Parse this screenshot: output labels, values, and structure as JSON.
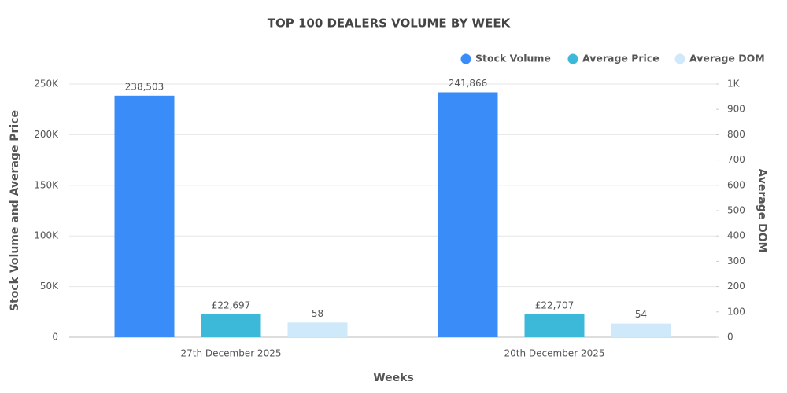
{
  "chart_data": {
    "type": "bar",
    "title": "TOP 100 DEALERS VOLUME BY WEEK",
    "x_label": "Weeks",
    "y_label": "Stock Volume and Average Price",
    "y2_label": "Average DOM",
    "categories": [
      "27th December 2025",
      "20th December 2025"
    ],
    "series": [
      {
        "name": "Stock Volume",
        "color": "#3a8cf8",
        "values": [
          238503,
          241866
        ],
        "value_labels": [
          "238,503",
          "241,866"
        ]
      },
      {
        "name": "Average Price",
        "color": "#3cb8d8",
        "values": [
          22697,
          22707
        ],
        "value_labels": [
          "£22,697",
          "£22,707"
        ]
      },
      {
        "name": "Average DOM",
        "color": "#cfe9fb",
        "values": [
          58,
          54
        ],
        "axis": "y2"
      }
    ],
    "ylim": [
      0,
      250000
    ],
    "yticks": [
      0,
      {
        "value": 50000,
        "label": "50K"
      },
      {
        "value": 100000,
        "label": "100K"
      },
      {
        "value": 150000,
        "label": "150K"
      },
      {
        "value": 200000,
        "label": "200K"
      },
      {
        "value": 250000,
        "label": "250K"
      }
    ],
    "y2lim": [
      0,
      1000
    ],
    "y2ticks": [
      0,
      100,
      200,
      300,
      400,
      500,
      600,
      700,
      800,
      900,
      {
        "value": 1000,
        "label": "1K"
      }
    ],
    "grid": true,
    "legend": "top-right"
  }
}
